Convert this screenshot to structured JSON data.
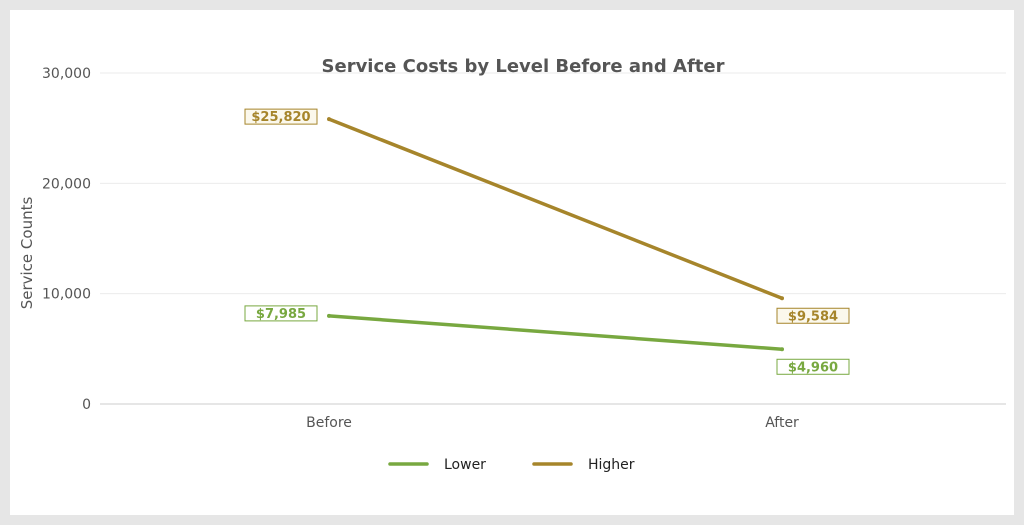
{
  "chart_data": {
    "type": "line",
    "title": "Service Costs by Level Before and After",
    "xlabel": "",
    "ylabel": "Service Counts",
    "categories": [
      "Before",
      "After"
    ],
    "ylim": [
      0,
      30000
    ],
    "yticks": [
      0,
      10000,
      20000,
      30000
    ],
    "ytick_labels": [
      "0",
      "10,000",
      "20,000",
      "30,000"
    ],
    "grid": true,
    "legend_position": "bottom-center",
    "series": [
      {
        "name": "Lower",
        "values": [
          7985,
          4960
        ],
        "labels": [
          "$7,985",
          "$4,960"
        ],
        "color": "#78a840",
        "label_fill": "#ffffff"
      },
      {
        "name": "Higher",
        "values": [
          25820,
          9584
        ],
        "labels": [
          "$25,820",
          "$9,584"
        ],
        "color": "#a6852b",
        "label_fill": "#fbf8ec"
      }
    ]
  }
}
